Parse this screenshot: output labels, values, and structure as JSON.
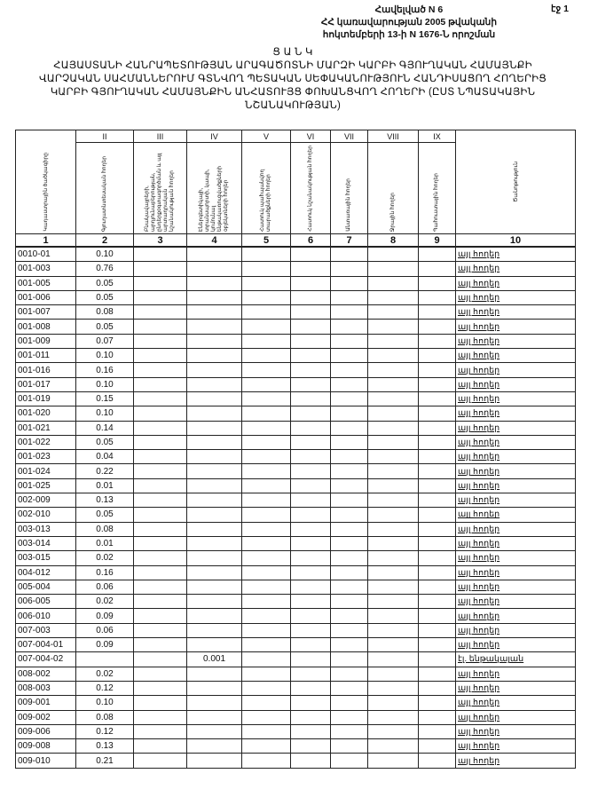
{
  "header": {
    "line1": "Հավելված N 6",
    "line2": "ՀՀ կառավարության 2005 թվականի",
    "line3": "հոկտեմբերի 13-ի N 1676-Ն որոշման",
    "sheet": "էջ 1"
  },
  "title": {
    "word": "Ց Ա Ն Կ",
    "text": "ՀԱՅԱՍՏԱՆԻ ՀԱՆՐԱՊԵՏՈՒԹՅԱՆ ԱՐԱԳԱԾՈՏՆԻ ՄԱՐԶԻ ԿԱՐԲԻ ԳՅՈՒՂԱԿԱՆ ՀԱՄԱՅՆՔԻ ՎԱՐՉԱԿԱՆ ՍԱՀՄԱՆՆԵՐՈՒՄ ԳՏՆՎՈՂ ՊԵՏԱԿԱՆ ՍԵՓԱԿԱՆՈՒԹՅՈՒՆ ՀԱՆԴԻՍԱՑՈՂ ՀՈՂԵՐԻՑ ԿԱՐԲԻ ԳՅՈՒՂԱԿԱՆ ՀԱՄԱՅՆՔԻՆ ԱՆՀԱՏՈՒՅՑ ՓՈԽԱՆՑՎՈՂ ՀՈՂԵՐԻ (ԸՍՏ ՆՊԱՏԱԿԱՅԻՆ ՆՇԱՆԱԿՈՒԹՅԱՆ)"
  },
  "table": {
    "roman": [
      "",
      "II",
      "III",
      "IV",
      "V",
      "VI",
      "VII",
      "VIII",
      "IX",
      ""
    ],
    "headers": [
      "Կադաստրային ծածկագիրը",
      "Գյուղատնտեսական հողեր",
      "Բնակավայրերի, արդյունաբերության, ընդերքօգտագործման և այլ արտադրական նշանակության հողեր",
      "Էներգետիկայի, տրանսպորտի, կապի, կոմունալ ենթակառուցվածքների օբյեկտների հողեր",
      "Հատուկ պահպանվող տարածքների հողեր",
      "Հատուկ նշանակության հողեր",
      "Անտառային հողեր",
      "Ջրային հողեր",
      "Պահուստային հողեր",
      "Ծանոթություն"
    ],
    "numbers": [
      "1",
      "2",
      "3",
      "4",
      "5",
      "6",
      "7",
      "8",
      "9",
      "10"
    ],
    "rows": [
      [
        "0010-01",
        "0.10",
        "",
        "",
        "այլ հողեր"
      ],
      [
        "001-003",
        "0.76",
        "",
        "",
        "այլ հողեր"
      ],
      [
        "001-005",
        "0.05",
        "",
        "",
        "այլ հողեր"
      ],
      [
        "001-006",
        "0.05",
        "",
        "",
        "այլ հողեր"
      ],
      [
        "001-007",
        "0.08",
        "",
        "",
        "այլ հողեր"
      ],
      [
        "001-008",
        "0.05",
        "",
        "",
        "այլ հողեր"
      ],
      [
        "001-009",
        "0.07",
        "",
        "",
        "այլ հողեր"
      ],
      [
        "001-011",
        "0.10",
        "",
        "",
        "այլ հողեր"
      ],
      [
        "001-016",
        "0.16",
        "",
        "",
        "այլ հողեր"
      ],
      [
        "001-017",
        "0.10",
        "",
        "",
        "այլ հողեր"
      ],
      [
        "001-019",
        "0.15",
        "",
        "",
        "այլ հողեր"
      ],
      [
        "001-020",
        "0.10",
        "",
        "",
        "այլ հողեր"
      ],
      [
        "001-021",
        "0.14",
        "",
        "",
        "այլ հողեր"
      ],
      [
        "001-022",
        "0.05",
        "",
        "",
        "այլ հողեր"
      ],
      [
        "001-023",
        "0.04",
        "",
        "",
        "այլ հողեր"
      ],
      [
        "001-024",
        "0.22",
        "",
        "",
        "այլ հողեր"
      ],
      [
        "001-025",
        "0.01",
        "",
        "",
        "այլ հողեր"
      ],
      [
        "002-009",
        "0.13",
        "",
        "",
        "այլ հողեր"
      ],
      [
        "002-010",
        "0.05",
        "",
        "",
        "այլ հողեր"
      ],
      [
        "003-013",
        "0.08",
        "",
        "",
        "այլ հողեր"
      ],
      [
        "003-014",
        "0.01",
        "",
        "",
        "այլ հողեր"
      ],
      [
        "003-015",
        "0.02",
        "",
        "",
        "այլ հողեր"
      ],
      [
        "004-012",
        "0.16",
        "",
        "",
        "այլ հողեր"
      ],
      [
        "005-004",
        "0.06",
        "",
        "",
        "այլ հողեր"
      ],
      [
        "006-005",
        "0.02",
        "",
        "",
        "այլ հողեր"
      ],
      [
        "006-010",
        "0.09",
        "",
        "",
        "այլ հողեր"
      ],
      [
        "007-003",
        "0.06",
        "",
        "",
        "այլ հողեր"
      ],
      [
        "007-004-01",
        "0.09",
        "",
        "",
        "այլ հողեր"
      ],
      [
        "007-004-02",
        "",
        "",
        "0.001",
        "էլ. ենթակայան"
      ],
      [
        "008-002",
        "0.02",
        "",
        "",
        "այլ հողեր"
      ],
      [
        "008-003",
        "0.12",
        "",
        "",
        "այլ հողեր"
      ],
      [
        "009-001",
        "0.10",
        "",
        "",
        "այլ հողեր"
      ],
      [
        "009-002",
        "0.08",
        "",
        "",
        "այլ հողեր"
      ],
      [
        "009-006",
        "0.12",
        "",
        "",
        "այլ հողեր"
      ],
      [
        "009-008",
        "0.13",
        "",
        "",
        "այլ հողեր"
      ],
      [
        "009-010",
        "0.21",
        "",
        "",
        "այլ հողեր"
      ]
    ]
  }
}
